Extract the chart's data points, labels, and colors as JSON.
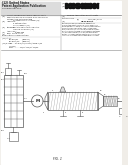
{
  "page_bg": "#f0ede8",
  "white": "#ffffff",
  "barcode_color": "#111111",
  "text_color": "#333333",
  "dark": "#222222",
  "gray": "#999999",
  "line_color": "#555555",
  "light_line": "#aaaaaa"
}
